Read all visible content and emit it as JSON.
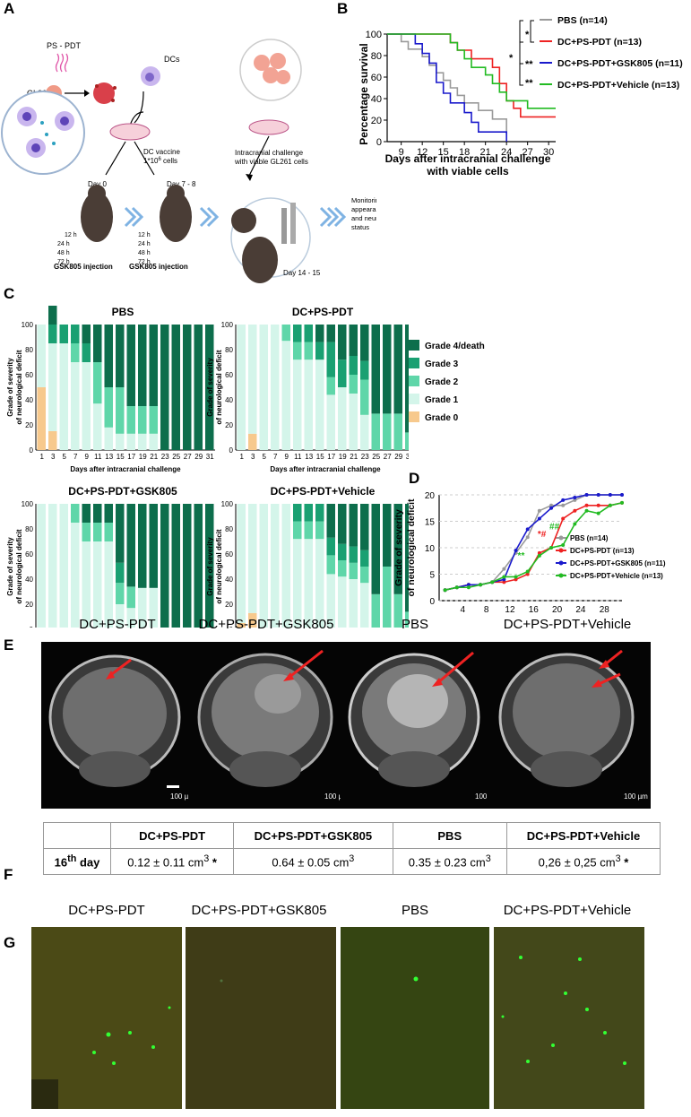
{
  "panels": {
    "a": "A",
    "b": "B",
    "c": "C",
    "d": "D",
    "e": "E",
    "f": "F",
    "g": "G"
  },
  "schematic": {
    "pspdt": "PS - PDT",
    "gl261": "GL261",
    "dcs": "DCs",
    "vaccine_line1": "DC vaccine",
    "vaccine_line2": "1*10",
    "vaccine_sup": "6",
    "vaccine_tail": " cells",
    "challenge_line1": "Intracranial challenge",
    "challenge_line2": "with viable GL261 cells",
    "day0": "Day 0",
    "day78": "Day 7 - 8",
    "day1415": "Day 14 - 15",
    "times": [
      "12 h",
      "24 h",
      "48 h",
      "72 h"
    ],
    "injection": "GSK805 injection",
    "monitor_line1": "Monitoring tumor",
    "monitor_line2": "appearance, growth",
    "monitor_line3": "and neurological",
    "monitor_line4": "status"
  },
  "chart_data": [
    {
      "type": "line",
      "panel": "B",
      "title": "",
      "xlabel": "Days after intracranial challenge",
      "xlabel2": "with viable cells",
      "ylabel": "Percentage survival",
      "xlim": [
        7,
        31
      ],
      "ylim": [
        0,
        100
      ],
      "xticks": [
        9,
        12,
        15,
        18,
        21,
        24,
        27,
        30
      ],
      "yticks": [
        0,
        20,
        40,
        60,
        80,
        100
      ],
      "series": [
        {
          "name": "PBS (n=14)",
          "color": "#9a9a9a",
          "x": [
            7,
            9,
            10,
            12,
            13,
            14,
            15,
            16,
            17,
            18,
            20,
            22,
            24
          ],
          "y": [
            100,
            93,
            86,
            79,
            71,
            64,
            57,
            50,
            43,
            36,
            29,
            21,
            7
          ]
        },
        {
          "name": "DC+PS-PDT (n=13)",
          "color": "#ee2222",
          "x": [
            7,
            14,
            16,
            17,
            19,
            21,
            22,
            23,
            24,
            25,
            26,
            31
          ],
          "y": [
            100,
            100,
            92,
            85,
            77,
            77,
            69,
            54,
            38,
            31,
            23,
            23
          ]
        },
        {
          "name": "DC+PS-PDT+GSK805 (n=11)",
          "color": "#1a1acc",
          "x": [
            7,
            9,
            11,
            12,
            13,
            14,
            15,
            16,
            17,
            18,
            19,
            20,
            21,
            24
          ],
          "y": [
            100,
            100,
            91,
            82,
            73,
            55,
            45,
            36,
            36,
            27,
            18,
            9,
            9,
            0
          ]
        },
        {
          "name": "DC+PS-PDT+Vehicle (n=13)",
          "color": "#22bb22",
          "x": [
            7,
            14,
            16,
            17,
            18,
            19,
            21,
            22,
            23,
            24,
            27,
            31
          ],
          "y": [
            100,
            100,
            92,
            85,
            77,
            69,
            62,
            54,
            46,
            38,
            31,
            31
          ]
        }
      ],
      "significance": [
        "*",
        "*",
        "**",
        "**"
      ]
    },
    {
      "type": "bar",
      "panel": "C",
      "stacked": true,
      "xlabel": "Days after intracranial challenge",
      "ylabel": "Grade of severity of neurological deficit",
      "ylim": [
        0,
        100
      ],
      "yticks": [
        0,
        20,
        40,
        60,
        80,
        100
      ],
      "categories": [
        1,
        3,
        5,
        7,
        9,
        11,
        13,
        15,
        17,
        19,
        21,
        23,
        25,
        27,
        29,
        31
      ],
      "legend": [
        {
          "name": "Grade 4/death",
          "color": "#0d6e4c"
        },
        {
          "name": "Grade 3",
          "color": "#1aa072"
        },
        {
          "name": "Grade 2",
          "color": "#5fd6a9"
        },
        {
          "name": "Grade 1",
          "color": "#d4f5ea"
        },
        {
          "name": "Grade 0",
          "color": "#f7c98d"
        }
      ],
      "subcharts": [
        {
          "title": "PBS",
          "grade0": [
            50,
            15,
            0,
            0,
            0,
            0,
            0,
            0,
            0,
            0,
            0,
            0,
            0,
            0,
            0,
            0
          ],
          "grade1": [
            50,
            70,
            85,
            70,
            70,
            37,
            18,
            13,
            13,
            13,
            13,
            0,
            0,
            0,
            0,
            0
          ],
          "grade2": [
            0,
            0,
            0,
            15,
            0,
            33,
            32,
            37,
            22,
            22,
            22,
            0,
            0,
            0,
            0,
            0
          ],
          "grade3": [
            0,
            15,
            15,
            15,
            15,
            0,
            0,
            0,
            0,
            0,
            0,
            0,
            0,
            0,
            0,
            0
          ],
          "grade4": [
            0,
            15,
            0,
            0,
            15,
            30,
            50,
            50,
            65,
            65,
            65,
            100,
            100,
            100,
            100,
            100
          ]
        },
        {
          "title": "DC+PS-PDT",
          "grade0": [
            0,
            13,
            0,
            0,
            0,
            0,
            0,
            0,
            0,
            0,
            0,
            0,
            0,
            0,
            0,
            0
          ],
          "grade1": [
            100,
            87,
            100,
            100,
            87,
            72,
            72,
            72,
            44,
            50,
            45,
            28,
            0,
            0,
            0,
            0
          ],
          "grade2": [
            0,
            0,
            0,
            0,
            13,
            14,
            14,
            0,
            14,
            0,
            15,
            28,
            29,
            29,
            29,
            14
          ],
          "grade3": [
            0,
            0,
            0,
            0,
            0,
            14,
            14,
            14,
            28,
            22,
            15,
            15,
            0,
            0,
            0,
            0
          ],
          "grade4": [
            0,
            0,
            0,
            0,
            0,
            0,
            0,
            14,
            14,
            28,
            25,
            29,
            71,
            71,
            71,
            86
          ]
        },
        {
          "title": "DC+PS-PDT+GSK805",
          "grade0": [
            0,
            0,
            0,
            0,
            0,
            0,
            0,
            0,
            0,
            0,
            0,
            0,
            0,
            0,
            0,
            0
          ],
          "grade1": [
            100,
            100,
            100,
            85,
            70,
            70,
            70,
            20,
            17,
            33,
            33,
            0,
            0,
            0,
            0,
            0
          ],
          "grade2": [
            0,
            0,
            0,
            15,
            15,
            15,
            15,
            17,
            17,
            0,
            0,
            0,
            0,
            0,
            0,
            0
          ],
          "grade3": [
            0,
            0,
            0,
            0,
            0,
            0,
            0,
            16,
            0,
            0,
            0,
            0,
            0,
            0,
            0,
            0
          ],
          "grade4": [
            0,
            0,
            0,
            0,
            15,
            15,
            15,
            47,
            66,
            67,
            67,
            100,
            100,
            100,
            100,
            100
          ]
        },
        {
          "title": "DC+PS-PDT+Vehicle",
          "grade0": [
            5,
            13,
            0,
            0,
            0,
            0,
            0,
            0,
            0,
            0,
            0,
            0,
            0,
            0,
            0,
            0
          ],
          "grade1": [
            95,
            87,
            100,
            100,
            100,
            72,
            72,
            72,
            44,
            42,
            40,
            37,
            0,
            0,
            0,
            0
          ],
          "grade2": [
            0,
            0,
            0,
            0,
            0,
            14,
            14,
            14,
            15,
            13,
            13,
            13,
            28,
            50,
            28,
            14
          ],
          "grade3": [
            0,
            0,
            0,
            0,
            0,
            14,
            14,
            14,
            14,
            13,
            13,
            13,
            0,
            0,
            0,
            0
          ],
          "grade4": [
            0,
            0,
            0,
            0,
            0,
            0,
            0,
            0,
            27,
            32,
            34,
            37,
            72,
            50,
            72,
            86
          ]
        }
      ]
    },
    {
      "type": "line",
      "panel": "D",
      "xlabel": "Days after intracranial challenge",
      "ylabel": "Grade of severity of neurological deficit",
      "xlim": [
        0,
        31
      ],
      "ylim": [
        0,
        20
      ],
      "xticks": [
        4,
        8,
        12,
        16,
        20,
        24,
        28
      ],
      "yticks": [
        0,
        5,
        10,
        15,
        20
      ],
      "series": [
        {
          "name": "PBS (n=14)",
          "color": "#9a9a9a",
          "x": [
            1,
            3,
            5,
            7,
            9,
            11,
            13,
            15,
            17,
            19,
            21,
            23,
            25,
            27,
            29,
            31
          ],
          "y": [
            2,
            2.5,
            3,
            3,
            3.5,
            6,
            9,
            12,
            17,
            18,
            18,
            19,
            20,
            20,
            20,
            20
          ]
        },
        {
          "name": "DC+PS-PDT (n=13)",
          "color": "#ee2222",
          "x": [
            1,
            3,
            5,
            7,
            9,
            11,
            13,
            15,
            17,
            19,
            21,
            23,
            25,
            27,
            29,
            31
          ],
          "y": [
            2,
            2.5,
            3,
            3,
            3.5,
            3.5,
            4,
            5,
            9,
            10,
            15.5,
            17,
            18,
            18,
            18,
            18.5
          ]
        },
        {
          "name": "DC+PS-PDT+GSK805 (n=11)",
          "color": "#1a1acc",
          "x": [
            1,
            3,
            5,
            7,
            9,
            11,
            13,
            15,
            17,
            19,
            21,
            23,
            25,
            27,
            29,
            31
          ],
          "y": [
            2,
            2.5,
            3,
            3,
            3.5,
            4,
            9.5,
            13.5,
            15.5,
            17.5,
            19,
            19.5,
            20,
            20,
            20,
            20
          ]
        },
        {
          "name": "DC+PS-PDT+Vehicle (n=13)",
          "color": "#22bb22",
          "x": [
            1,
            3,
            5,
            7,
            9,
            11,
            13,
            15,
            17,
            19,
            21,
            23,
            25,
            27,
            29,
            31
          ],
          "y": [
            2,
            2.5,
            2.5,
            3,
            3.5,
            4.5,
            4.5,
            5.5,
            8.5,
            10,
            10.5,
            14.5,
            17,
            16.5,
            18,
            18.5
          ]
        }
      ],
      "annotations": [
        "*#",
        "##",
        "**"
      ]
    }
  ],
  "mri": {
    "labels": [
      "DC+PS-PDT",
      "DC+PS-PDT+GSK805",
      "PBS",
      "DC+PS-PDT+Vehicle"
    ],
    "scale": "100 µm"
  },
  "volumes": {
    "headers": [
      "",
      "DC+PS-PDT",
      "DC+PS-PDT+GSK805",
      "PBS",
      "DC+PS-PDT+Vehicle"
    ],
    "row_label": "16",
    "row_sup": "th",
    "row_tail": " day",
    "values": [
      "0.12 ± 0.11 cm",
      "0.64 ± 0.05 cm",
      "0.35 ± 0.23 cm",
      "0,26 ± 0,25 cm"
    ],
    "unit_sup": "3",
    "stars": [
      "*",
      "",
      "",
      "*"
    ]
  },
  "fluor": {
    "labels": [
      "DC+PS-PDT",
      "DC+PS-PDT+GSK805",
      "PBS",
      "DC+PS-PDT+Vehicle"
    ]
  }
}
